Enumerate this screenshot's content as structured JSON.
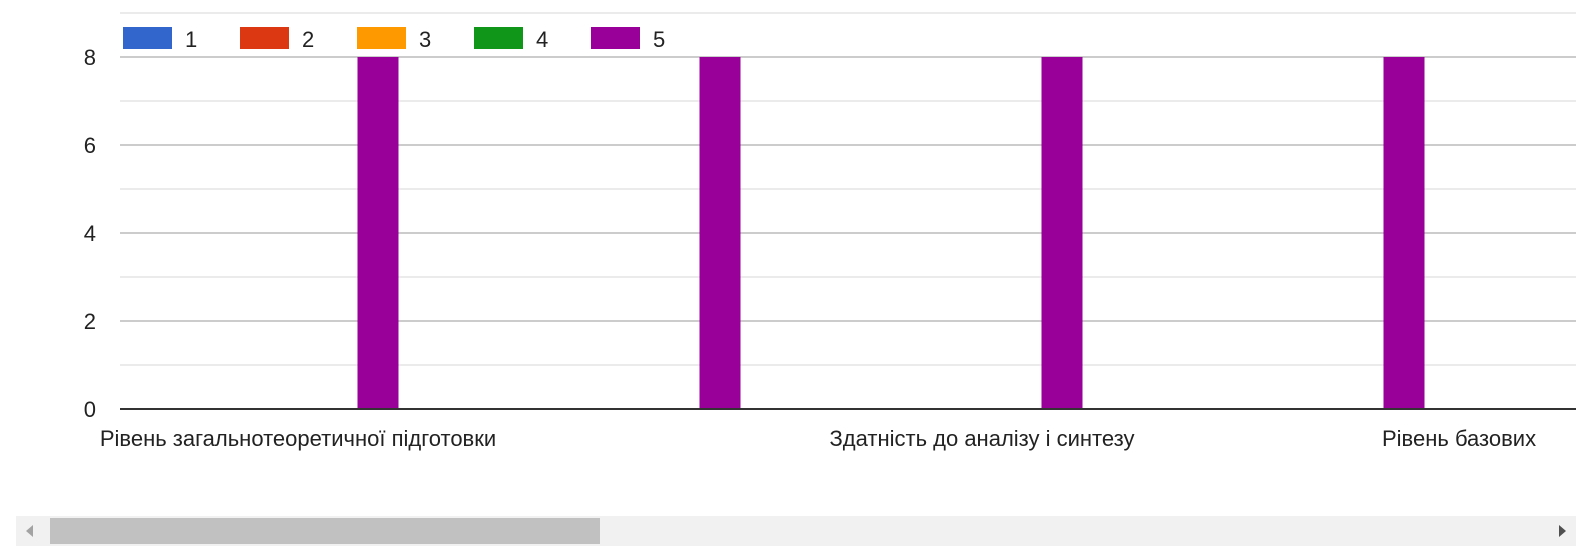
{
  "chart_data": {
    "type": "bar",
    "categories": [
      "Рівень загальнотеоретичної підготовки",
      "",
      "Здатність до аналізу і синтезу",
      "Рівень базових"
    ],
    "series": [
      {
        "name": "1",
        "color": "#3366cc",
        "values": [
          0,
          0,
          0,
          0
        ]
      },
      {
        "name": "2",
        "color": "#dc3912",
        "values": [
          0,
          0,
          0,
          0
        ]
      },
      {
        "name": "3",
        "color": "#ff9900",
        "values": [
          0,
          0,
          0,
          0
        ]
      },
      {
        "name": "4",
        "color": "#109618",
        "values": [
          0,
          0,
          0,
          0
        ]
      },
      {
        "name": "5",
        "color": "#990099",
        "values": [
          8,
          8,
          8,
          8
        ]
      }
    ],
    "yticks": [
      0,
      2,
      4,
      6,
      8
    ],
    "ylim": [
      0,
      8
    ],
    "grid": true,
    "legend": "top-left"
  },
  "scrollbar": {
    "left_arrow_icon": "triangle-left-icon",
    "right_arrow_icon": "triangle-right-icon"
  }
}
